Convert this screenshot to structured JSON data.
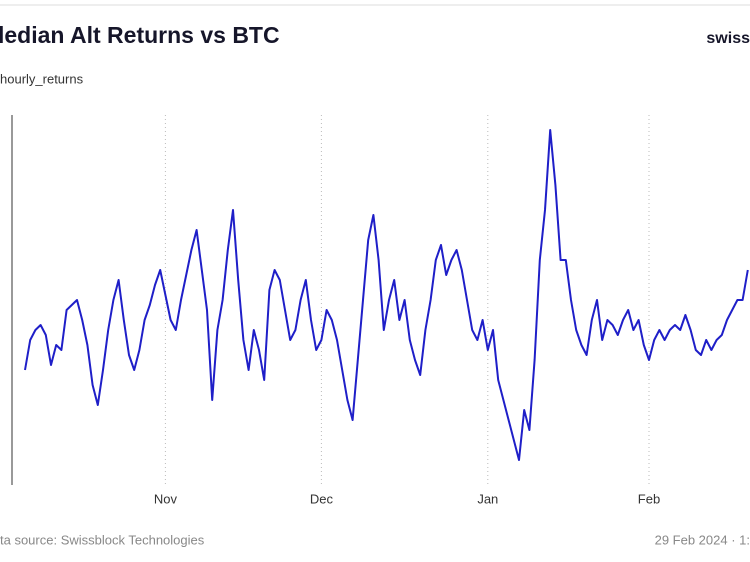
{
  "chart_data": {
    "type": "line",
    "title": "ledian Alt Returns vs BTC",
    "brand": "swiss",
    "y_label": "hourly_returns",
    "source": "ta source: Swissblock Technologies",
    "timestamp": "29 Feb 2024 · 1:",
    "categories": [
      null,
      null,
      null,
      null,
      null,
      null,
      null,
      null,
      null,
      null,
      null,
      null,
      null,
      null,
      null,
      null,
      null,
      null,
      null,
      null,
      null,
      null,
      null,
      null,
      null,
      null,
      null,
      "Nov",
      null,
      null,
      null,
      null,
      null,
      null,
      null,
      null,
      null,
      null,
      null,
      null,
      null,
      null,
      null,
      null,
      null,
      null,
      null,
      null,
      null,
      null,
      null,
      null,
      null,
      null,
      null,
      null,
      null,
      "Dec",
      null,
      null,
      null,
      null,
      null,
      null,
      null,
      null,
      null,
      null,
      null,
      null,
      null,
      null,
      null,
      null,
      null,
      null,
      null,
      null,
      null,
      null,
      null,
      null,
      null,
      null,
      null,
      null,
      null,
      null,
      null,
      "Jan",
      null,
      null,
      null,
      null,
      null,
      null,
      null,
      null,
      null,
      null,
      null,
      null,
      null,
      null,
      null,
      null,
      null,
      null,
      null,
      null,
      null,
      null,
      null,
      null,
      null,
      null,
      null,
      null,
      null,
      null,
      "Feb",
      null,
      null,
      null,
      null,
      null,
      null,
      null,
      null,
      null,
      null,
      null,
      null,
      null,
      null,
      null,
      null,
      null,
      null,
      null
    ],
    "series": [
      {
        "color": "#1f1fc8",
        "values": [
          115,
          145,
          155,
          160,
          150,
          120,
          140,
          135,
          175,
          180,
          185,
          165,
          140,
          100,
          80,
          115,
          155,
          185,
          205,
          165,
          130,
          115,
          135,
          165,
          180,
          200,
          215,
          190,
          165,
          155,
          185,
          210,
          235,
          255,
          215,
          175,
          85,
          155,
          185,
          235,
          275,
          205,
          145,
          115,
          155,
          135,
          105,
          195,
          215,
          205,
          175,
          145,
          155,
          185,
          205,
          165,
          135,
          145,
          175,
          165,
          145,
          115,
          85,
          65,
          125,
          185,
          245,
          270,
          225,
          155,
          185,
          205,
          165,
          185,
          145,
          125,
          110,
          155,
          185,
          225,
          240,
          210,
          225,
          235,
          215,
          185,
          155,
          145,
          165,
          135,
          155,
          105,
          85,
          65,
          45,
          25,
          75,
          55,
          125,
          225,
          275,
          355,
          300,
          225,
          225,
          185,
          155,
          140,
          130,
          165,
          185,
          145,
          165,
          160,
          150,
          165,
          175,
          155,
          165,
          140,
          125,
          145,
          155,
          145,
          155,
          160,
          155,
          170,
          155,
          135,
          130,
          145,
          135,
          145,
          150,
          165,
          175,
          185,
          185,
          215
        ]
      }
    ],
    "ylim": [
      0,
      370
    ],
    "grid": true
  }
}
